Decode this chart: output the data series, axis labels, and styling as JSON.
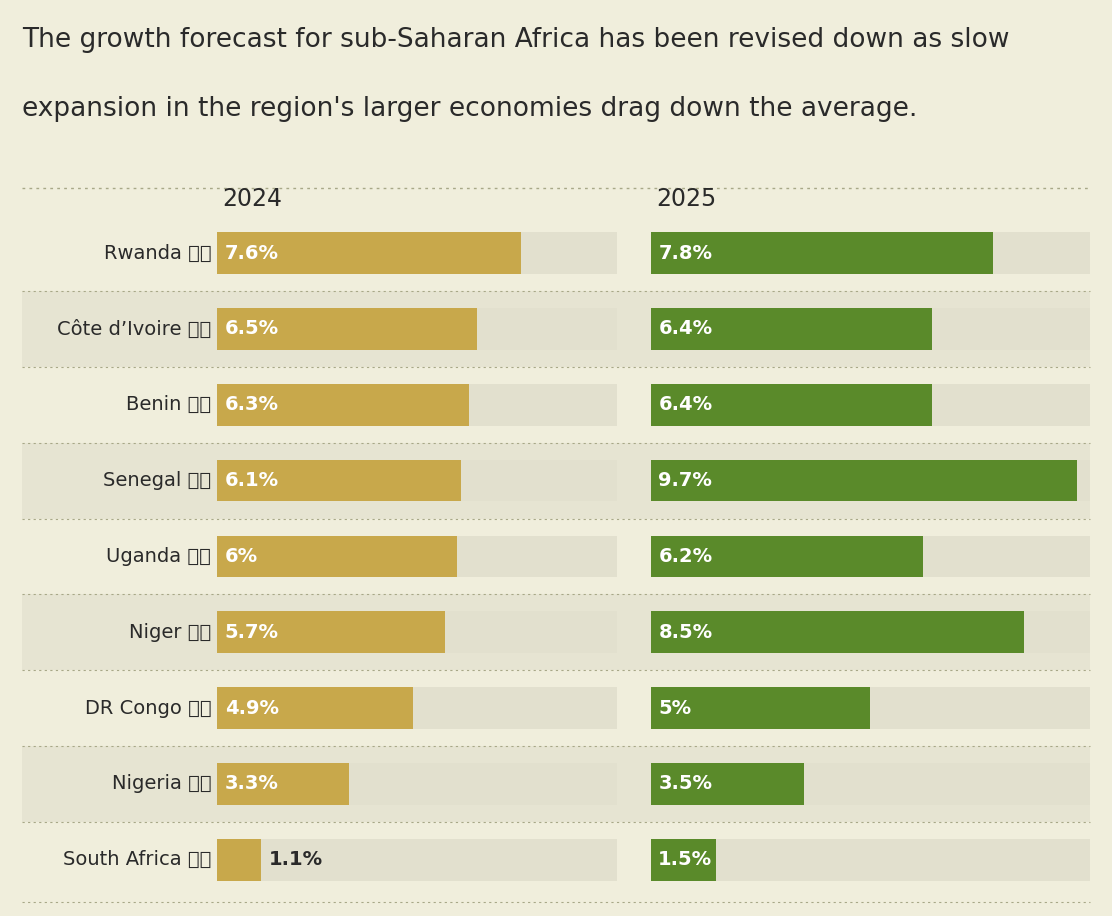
{
  "title_line1": "The growth forecast for sub-Saharan Africa has been revised down as slow",
  "title_line2": "expansion in the region's larger economies drag down the average.",
  "background_color": "#f0eedc",
  "bar_bg_color_light": "#e2e0ce",
  "bar_bg_color_dark": "#d8d6c4",
  "row_color_even": "#f0eedc",
  "row_color_odd": "#e6e4d2",
  "color_2024": "#c8a84b",
  "color_2025": "#5a8a2a",
  "year_2024": "2024",
  "year_2025": "2025",
  "countries": [
    "Rwanda",
    "Côte d’Ivoire",
    "Benin",
    "Senegal",
    "Uganda",
    "Niger",
    "DR Congo",
    "Nigeria",
    "South Africa"
  ],
  "flag_emojis": [
    "🇷🇼",
    "🇨🇮",
    "🇧🇯",
    "🇸🇳",
    "🇺🇬",
    "🇳🇪",
    "🇨🇩",
    "🇳🇬",
    "🇿🇦"
  ],
  "values_2024": [
    7.6,
    6.5,
    6.3,
    6.1,
    6.0,
    5.7,
    4.9,
    3.3,
    1.1
  ],
  "values_2025": [
    7.8,
    6.4,
    6.4,
    9.7,
    6.2,
    8.5,
    5.0,
    3.5,
    1.5
  ],
  "labels_2024": [
    "7.6%",
    "6.5%",
    "6.3%",
    "6.1%",
    "6%",
    "5.7%",
    "4.9%",
    "3.3%",
    "1.1%"
  ],
  "labels_2025": [
    "7.8%",
    "6.4%",
    "6.4%",
    "9.7%",
    "6.2%",
    "8.5%",
    "5%",
    "3.5%",
    "1.5%"
  ],
  "max_value": 10.0,
  "title_fontsize": 19,
  "label_fontsize": 14,
  "country_fontsize": 14,
  "year_fontsize": 17,
  "dot_color": "#a0a878",
  "text_color": "#2a2a2a",
  "separator_color": "#a8a888"
}
